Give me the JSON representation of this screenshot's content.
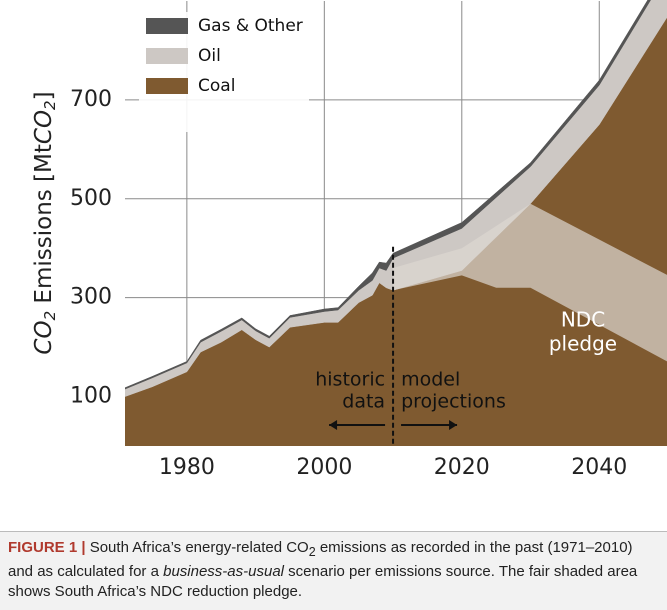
{
  "chart_data": {
    "type": "stacked_area",
    "ylabel": [
      "CO",
      "2",
      " Emissions [Mt",
      "CO",
      "2",
      "]"
    ],
    "x": [
      1971,
      1975,
      1980,
      1982,
      1985,
      1988,
      1990,
      1992,
      1995,
      2000,
      2002,
      2005,
      2007,
      2008,
      2009,
      2010,
      2020,
      2030,
      2040,
      2050
    ],
    "series": [
      {
        "name": "Coal",
        "color": "#7f5a30",
        "values": [
          100,
          120,
          150,
          190,
          210,
          235,
          215,
          200,
          240,
          250,
          250,
          290,
          305,
          330,
          320,
          315,
          355,
          490,
          650,
          870
        ]
      },
      {
        "name": "Oil",
        "color": "#cdc8c4",
        "values": [
          15,
          18,
          18,
          20,
          22,
          20,
          18,
          18,
          20,
          22,
          25,
          25,
          30,
          30,
          35,
          65,
          85,
          75,
          80,
          90
        ]
      },
      {
        "name": "Gas & Other",
        "color": "#555555",
        "values": [
          3,
          3,
          3,
          4,
          4,
          4,
          4,
          4,
          4,
          5,
          5,
          8,
          15,
          12,
          15,
          10,
          12,
          8,
          10,
          10
        ]
      }
    ],
    "ndc_band": {
      "x": [
        2010,
        2020,
        2025,
        2030,
        2050
      ],
      "upper": [
        360,
        400,
        445,
        490,
        345
      ],
      "lower": [
        315,
        345,
        320,
        320,
        170
      ],
      "color": "#ddd7d1",
      "label": [
        "NDC",
        "pledge"
      ]
    },
    "divider": {
      "x": 2010,
      "top": 403,
      "left_label": [
        "historic",
        "data"
      ],
      "right_label": [
        "model",
        "projections"
      ]
    },
    "xlim": [
      1971,
      2050
    ],
    "ylim": [
      0,
      900
    ],
    "xticks": [
      1980,
      2000,
      2020,
      2040
    ],
    "yticks": [
      100,
      300,
      500,
      700
    ],
    "grid": true,
    "legend": "top-left"
  },
  "caption": {
    "label": "FIGURE 1 |",
    "parts": [
      " South Africa’s energy-related CO",
      "2",
      " emissions as recorded in the past (1971–2010) and as calculated for a ",
      "business-as-usual",
      " scenario per emissions source. The fair shaded area shows South Africa’s NDC reduction pledge."
    ]
  }
}
